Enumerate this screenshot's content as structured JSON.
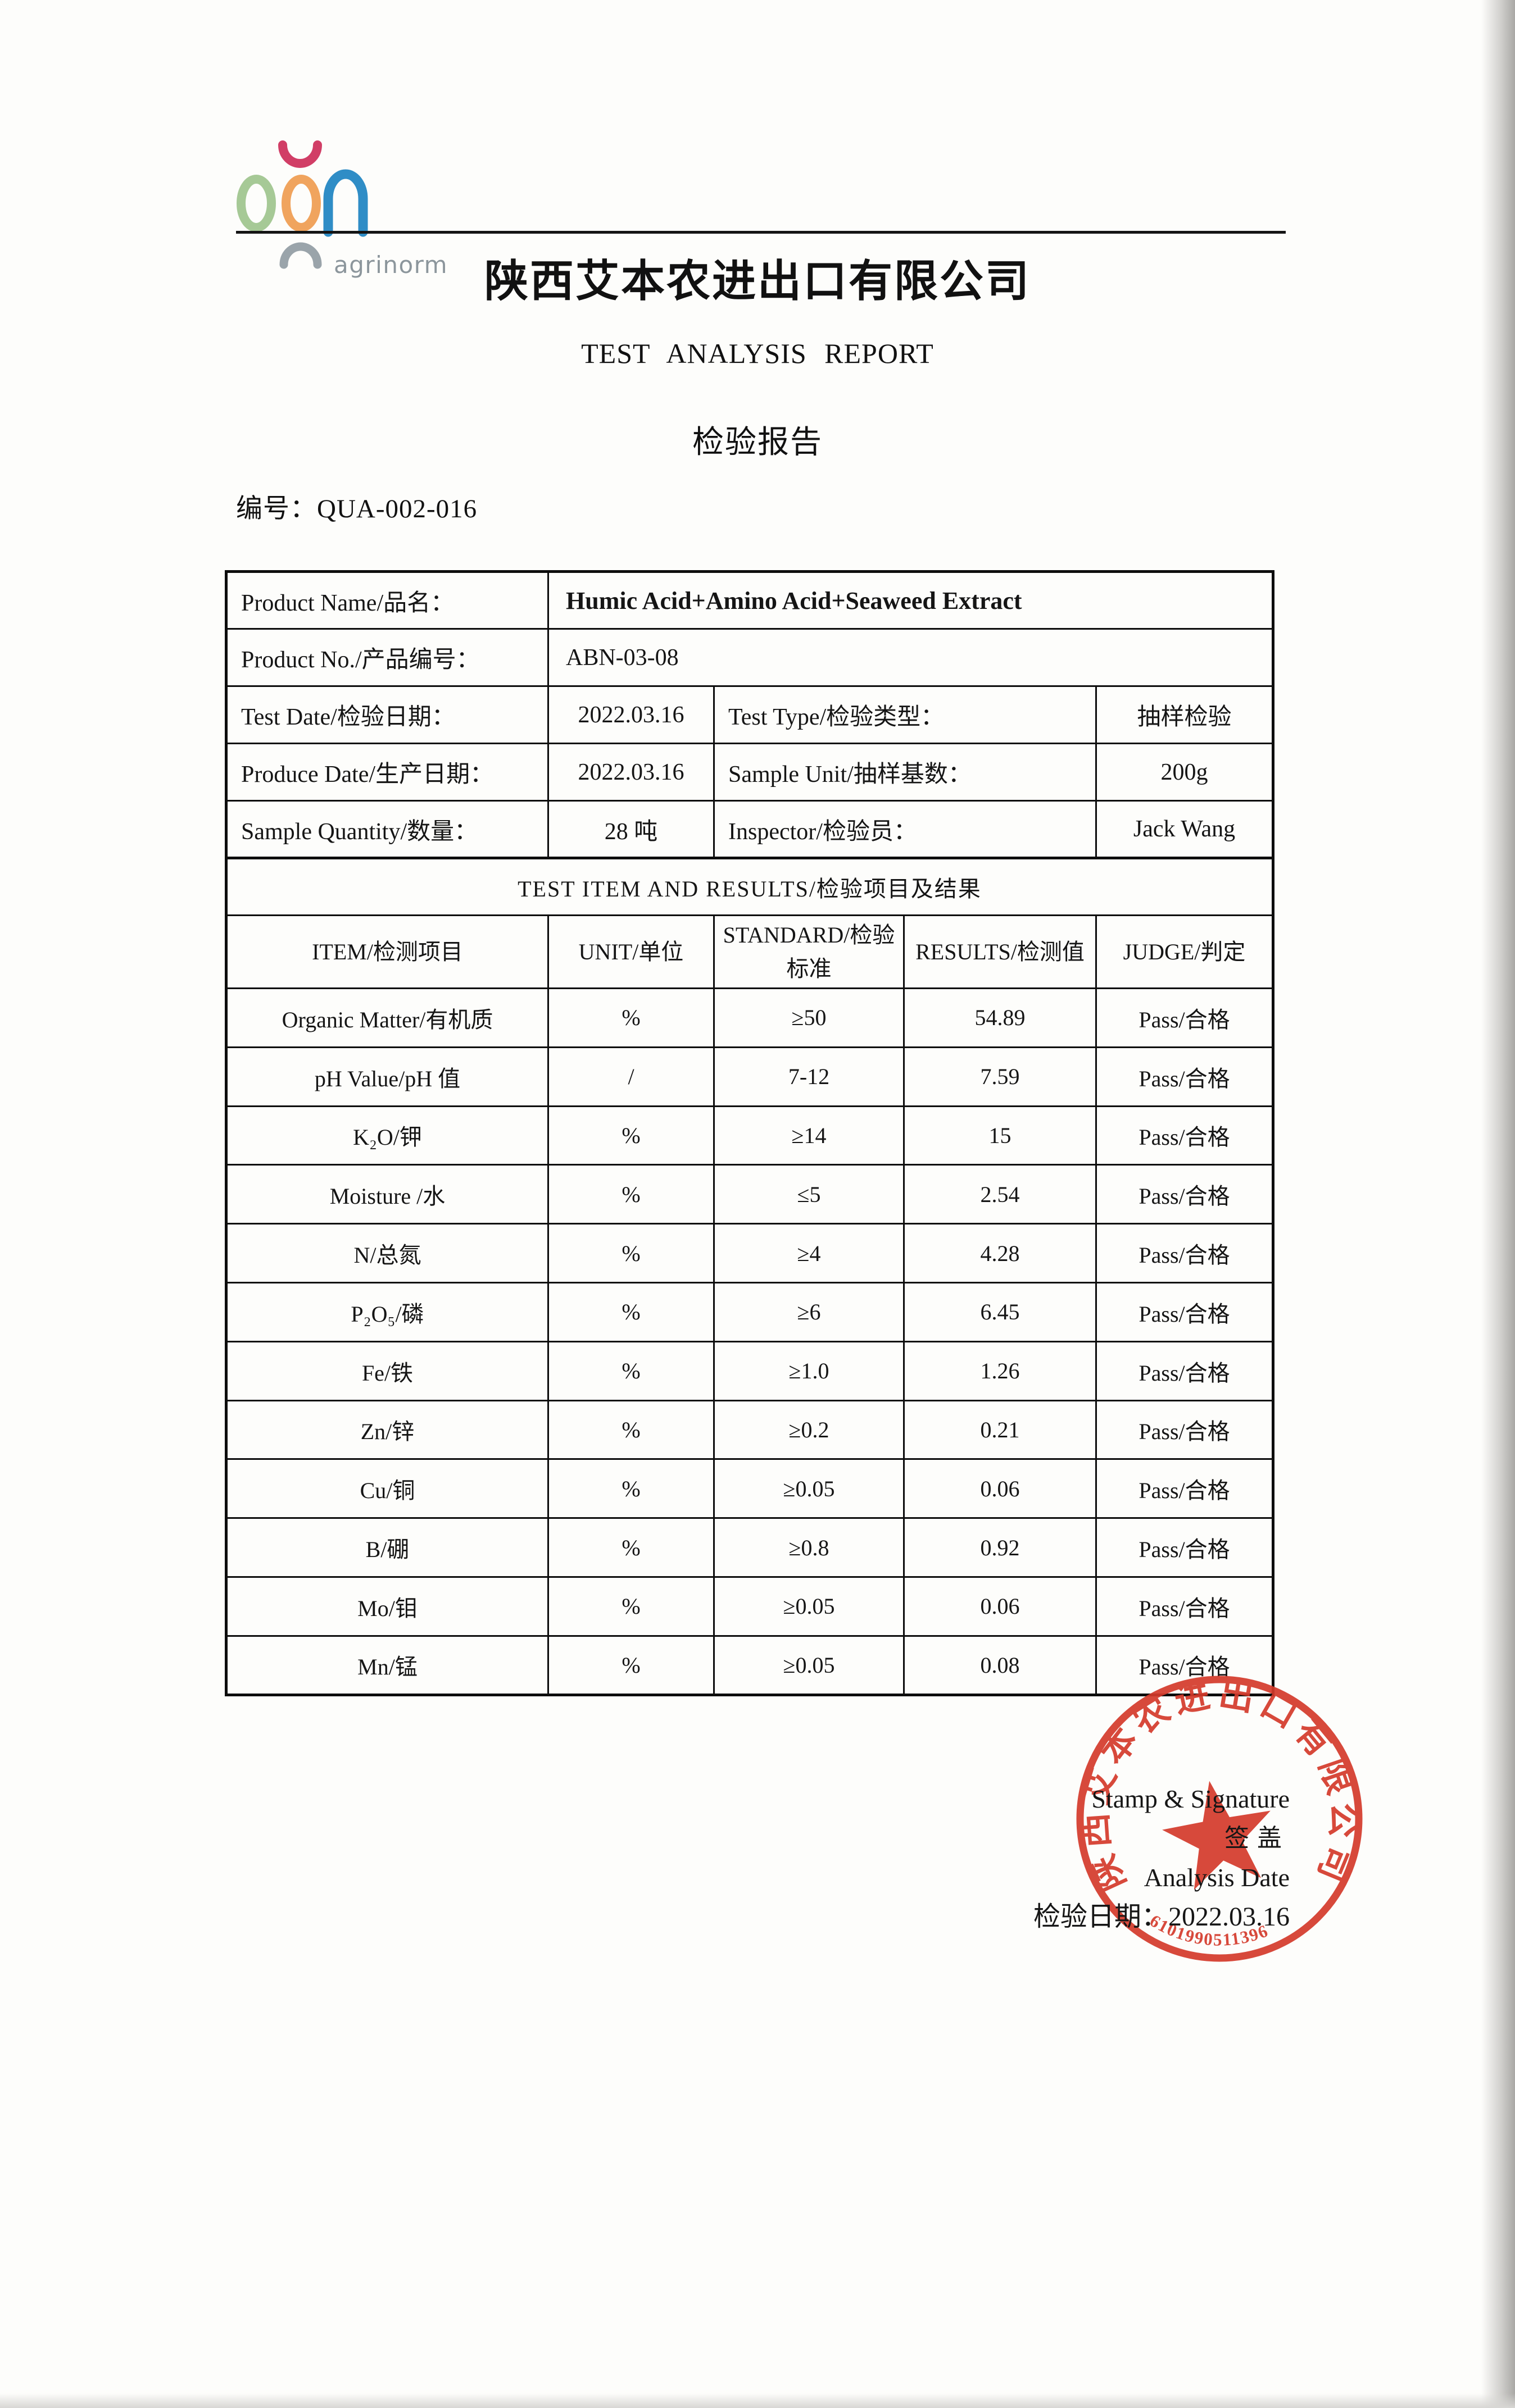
{
  "logo": {
    "brand": "aon",
    "tagline": "agrinorm",
    "colors": {
      "a_green": "#a6c996",
      "smile_pink": "#d13e66",
      "o_orange": "#f0a45e",
      "n_blue": "#2f8dc6",
      "arc_gray": "#9aa4aa",
      "tagline_gray": "#8c969c"
    }
  },
  "header": {
    "company": "陕西艾本农进出口有限公司",
    "title_en": "TEST ANALYSIS REPORT",
    "title_cn": "检验报告",
    "report_no_label": "编号：",
    "report_no": "QUA-002-016"
  },
  "info_table": {
    "rows": [
      {
        "label": "Product Name/品名：",
        "value": "Humic Acid+Amino Acid+Seaweed Extract",
        "bold": true
      },
      {
        "label": "Product No./产品编号：",
        "value": "ABN-03-08",
        "bold": false
      },
      {
        "label": "Test Date/检验日期：",
        "value": "2022.03.16",
        "label2": "Test Type/检验类型：",
        "value2": "抽样检验"
      },
      {
        "label": "Produce Date/生产日期：",
        "value": "2022.03.16",
        "label2": "Sample Unit/抽样基数：",
        "value2": "200g"
      },
      {
        "label": "Sample Quantity/数量：",
        "value": "28 吨",
        "label2": "Inspector/检验员：",
        "value2": "Jack Wang"
      }
    ]
  },
  "results_table": {
    "section_header": "TEST ITEM AND RESULTS/检验项目及结果",
    "columns": [
      "ITEM/检测项目",
      "UNIT/单位",
      "STANDARD/检验标准",
      "RESULTS/检测值",
      "JUDGE/判定"
    ],
    "rows": [
      [
        "Organic Matter/有机质",
        "%",
        "≥50",
        "54.89",
        "Pass/合格"
      ],
      [
        "pH Value/pH 值",
        "/",
        "7-12",
        "7.59",
        "Pass/合格"
      ],
      [
        "K₂O/钾",
        "%",
        "≥14",
        "15",
        "Pass/合格"
      ],
      [
        "Moisture /水",
        "%",
        "≤5",
        "2.54",
        "Pass/合格"
      ],
      [
        "N/总氮",
        "%",
        "≥4",
        "4.28",
        "Pass/合格"
      ],
      [
        "P₂O₅/磷",
        "%",
        "≥6",
        "6.45",
        "Pass/合格"
      ],
      [
        "Fe/铁",
        "%",
        "≥1.0",
        "1.26",
        "Pass/合格"
      ],
      [
        "Zn/锌",
        "%",
        "≥0.2",
        "0.21",
        "Pass/合格"
      ],
      [
        "Cu/铜",
        "%",
        "≥0.05",
        "0.06",
        "Pass/合格"
      ],
      [
        "B/硼",
        "%",
        "≥0.8",
        "0.92",
        "Pass/合格"
      ],
      [
        "Mo/钼",
        "%",
        "≥0.05",
        "0.06",
        "Pass/合格"
      ],
      [
        "Mn/锰",
        "%",
        "≥0.05",
        "0.08",
        "Pass/合格"
      ]
    ]
  },
  "footer": {
    "lines": [
      "Stamp & Signature",
      "签盖",
      "Analysis Date",
      "检验日期：2022.03.16"
    ]
  },
  "stamp": {
    "ring_text": "陕西艾本农进出口有限公司",
    "serial": "6101990511396",
    "color": "#d43a2b"
  }
}
